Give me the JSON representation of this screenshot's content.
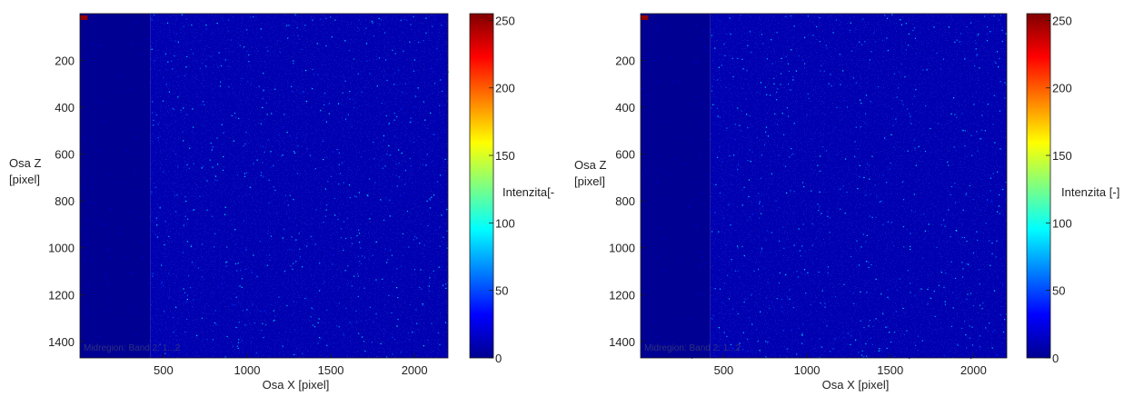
{
  "chart_data": [
    {
      "type": "heatmap",
      "title": "",
      "xlabel": "Osa X [pixel]",
      "ylabel_lines": [
        "Osa Z",
        "[pixel]"
      ],
      "xlim": [
        1,
        2200
      ],
      "ylim": [
        1,
        1470
      ],
      "y_reversed": true,
      "x_ticks": [
        500,
        1000,
        1500,
        2000
      ],
      "y_ticks": [
        200,
        400,
        600,
        800,
        1000,
        1200,
        1400
      ],
      "colorbar": {
        "label": "Intenzita[-",
        "range": [
          0,
          255
        ],
        "ticks": [
          0,
          50,
          100,
          150,
          200,
          250
        ],
        "colormap": "jet"
      },
      "annotation": "Midregion: Band 2: 1...2",
      "regions": [
        {
          "x_range": [
            1,
            420
          ],
          "typical_intensity": 5
        },
        {
          "x_range": [
            420,
            2200
          ],
          "typical_intensity": 12
        }
      ],
      "hotspot": {
        "x": 25,
        "z": 20,
        "intensity": 250
      }
    },
    {
      "type": "heatmap",
      "title": "",
      "xlabel": "Osa X [pixel]",
      "ylabel_lines": [
        "Osa Z",
        "[pixel]"
      ],
      "xlim": [
        1,
        2200
      ],
      "ylim": [
        1,
        1470
      ],
      "y_reversed": true,
      "x_ticks": [
        500,
        1000,
        1500,
        2000
      ],
      "y_ticks": [
        200,
        400,
        600,
        800,
        1000,
        1200,
        1400
      ],
      "colorbar": {
        "label": "Intenzita [-]",
        "range": [
          0,
          255
        ],
        "ticks": [
          0,
          50,
          100,
          150,
          200,
          250
        ],
        "colormap": "jet"
      },
      "annotation": "Midregion: Band 2: 1...2",
      "regions": [
        {
          "x_range": [
            1,
            420
          ],
          "typical_intensity": 5
        },
        {
          "x_range": [
            420,
            2200
          ],
          "typical_intensity": 12
        }
      ],
      "hotspot": {
        "x": 25,
        "z": 20,
        "intensity": 250
      }
    }
  ]
}
